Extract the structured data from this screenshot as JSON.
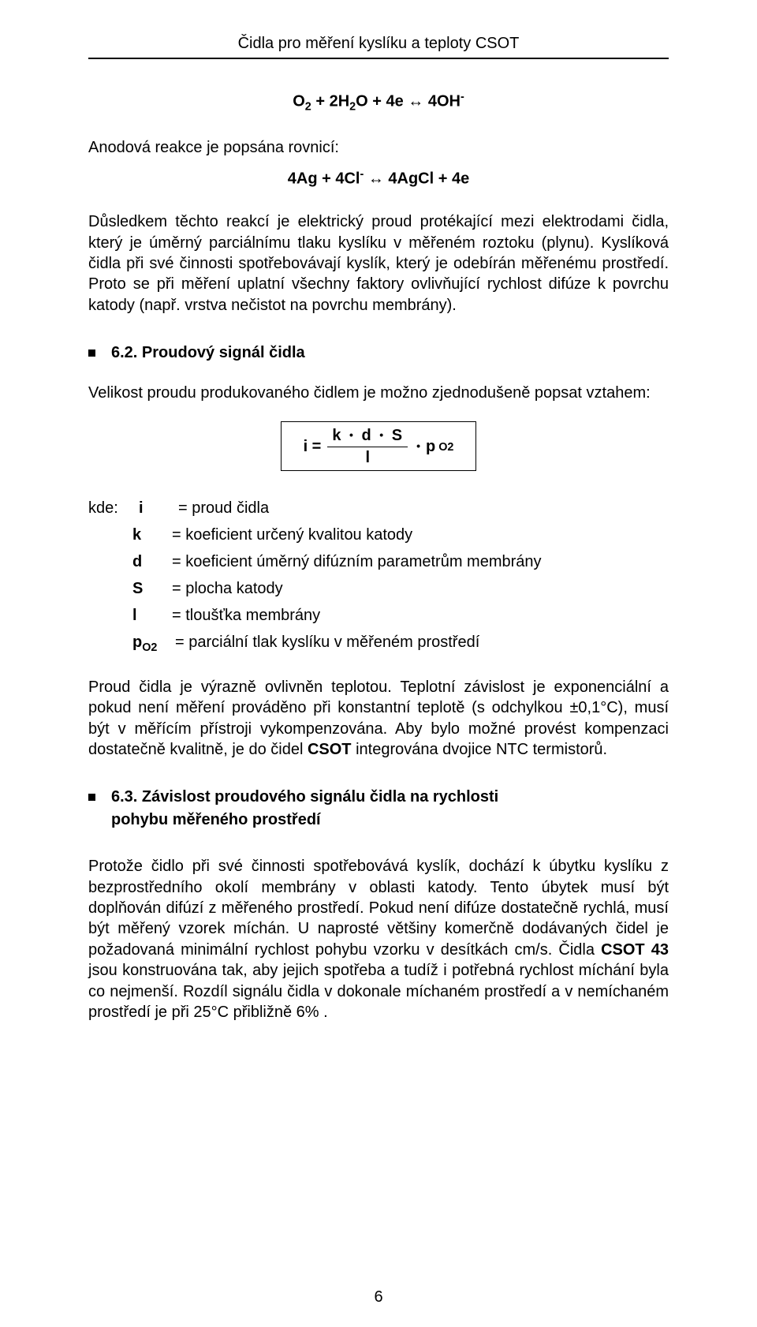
{
  "header": {
    "title": "Čidla pro měření kyslíku a teploty CSOT"
  },
  "equations": {
    "eq1_html": "O<sub>2</sub> + 2H<sub>2</sub>O + 4e ↔ 4OH<sup>-</sup>",
    "lead1": "Anodová reakce je popsána rovnicí:",
    "eq2_html": "4Ag + 4Cl<sup>-</sup> ↔ 4AgCl + 4e"
  },
  "para1": "Důsledkem těchto reakcí je elektrický proud protékající mezi elektrodami čidla, který je úměrný parciálnímu tlaku kyslíku v měřeném roztoku (plynu). Kyslíková čidla při své činnosti spotřebovávají kyslík, který je odebírán měřenému prostředí. Proto se při měření uplatní všechny faktory ovlivňující rychlost difúze k povrchu katody (např. vrstva nečistot na povrchu membrány).",
  "sec62": {
    "num": "6.2.",
    "title": "Proudový signál čidla",
    "intro": "Velikost proudu produkovaného čidlem je možno zjednodušeně popsat vztahem:"
  },
  "formula": {
    "lhs": "i =",
    "num_html": "k <span class=\"dotop\">•</span> d <span class=\"dotop\">•</span> S",
    "den": "l",
    "tail_html": "<span class=\"dotop\">•</span> p<sub>O2</sub>"
  },
  "defs": {
    "kde": "kde:",
    "rows": [
      {
        "sym": "i",
        "text": "= proud čidla"
      },
      {
        "sym": "k",
        "text": "= koeficient určený kvalitou katody"
      },
      {
        "sym": "d",
        "text": "= koeficient úměrný difúzním parametrům membrány"
      },
      {
        "sym": "S",
        "text": "= plocha katody"
      },
      {
        "sym": "l",
        "text": "= tloušťka membrány"
      },
      {
        "sym_html": "p<sub>O2</sub>",
        "text": "= parciální tlak kyslíku v měřeném prostředí"
      }
    ]
  },
  "para2_html": "Proud čidla je výrazně ovlivněn teplotou. Teplotní závislost je exponenciální a pokud není měření prováděno při konstantní teplotě (s odchylkou ±0,1°C), musí být v měřícím přístroji vykompenzována. Aby bylo možné provést kompenzaci dostatečně kvalitně, je do čidel <b>CSOT</b> integrována dvojice NTC termistorů.",
  "sec63": {
    "num": "6.3.",
    "title_line1": "Závislost proudového signálu čidla na rychlosti",
    "title_line2": "pohybu měřeného prostředí"
  },
  "para3_html": "Protože čidlo při své činnosti spotřebovává kyslík, dochází k úbytku  kyslíku z bezprostředního okolí membrány v oblasti katody. Tento úbytek musí být doplňován difúzí z měřeného prostředí. Pokud není difúze dostatečně rychlá, musí být měřený vzorek míchán. U naprosté většiny komerčně dodávaných čidel je požadovaná minimální rychlost pohybu vzorku v desítkách cm/s. Čidla <b>CSOT 43</b> jsou konstruována tak, aby jejich spotřeba a tudíž i potřebná rychlost míchání byla co nejmenší. Rozdíl signálu čidla v dokonale míchaném prostředí a v nemíchaném prostředí je při 25°C přibližně 6% .",
  "page_number": "6",
  "colors": {
    "text": "#000000",
    "background": "#ffffff",
    "rule": "#000000"
  },
  "typography": {
    "font_family": "Arial",
    "body_fontsize_pt": 15,
    "line_height": 1.32
  }
}
